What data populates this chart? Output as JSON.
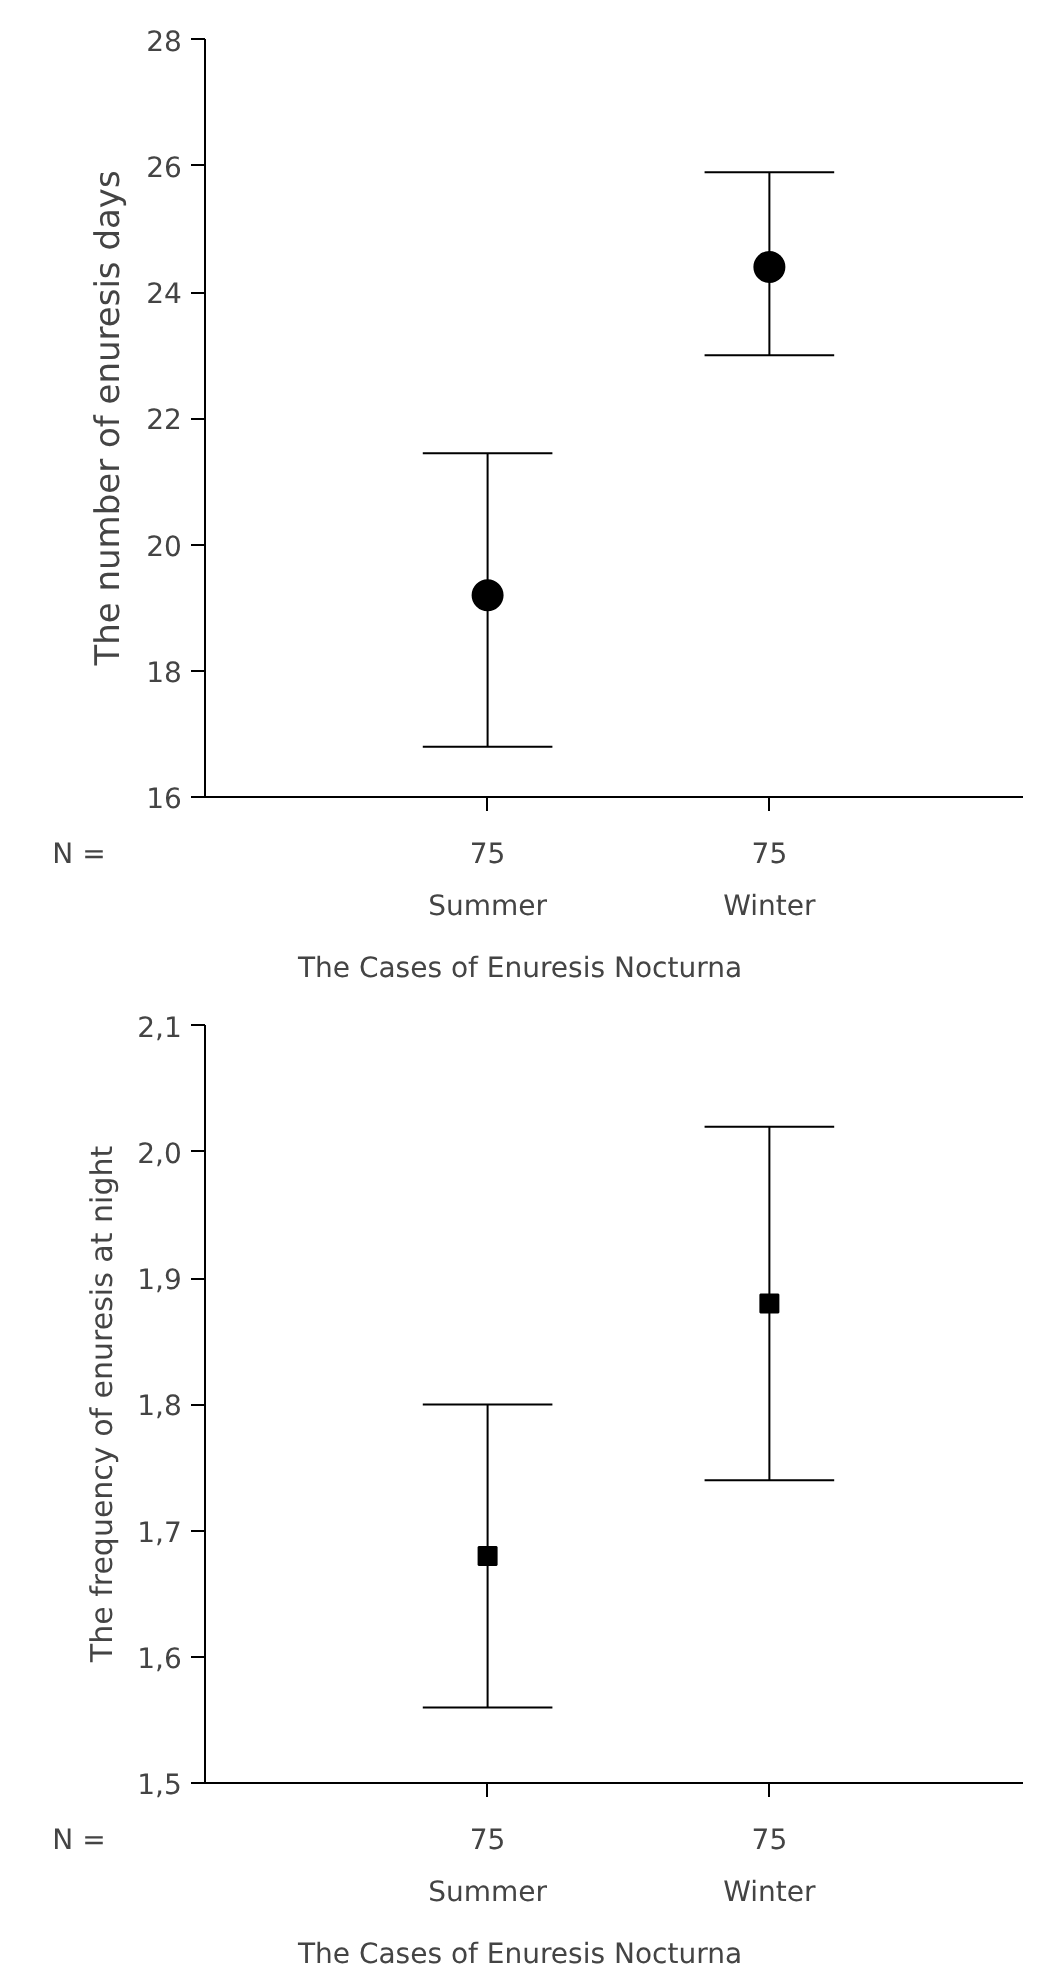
{
  "chart_data": [
    {
      "type": "scatter",
      "xlabel": "The Cases of Enuresis Nocturna",
      "ylabel": "The number of enuresis days",
      "categories": [
        "Summer",
        "Winter"
      ],
      "values": [
        19.2,
        24.4
      ],
      "errors": [
        [
          16.8,
          21.45
        ],
        [
          23.0,
          25.9
        ]
      ],
      "color": "#000000",
      "ylim": [
        16,
        28
      ],
      "yticks": [
        16,
        18,
        20,
        22,
        24,
        26,
        28
      ],
      "marker": "circle",
      "grid": false,
      "annotations": [
        "N =",
        "75",
        "75"
      ]
    },
    {
      "type": "scatter",
      "xlabel": "The Cases of Enuresis Nocturna",
      "ylabel": "The frequency of enuresis at night",
      "categories": [
        "Summer",
        "Winter"
      ],
      "values": [
        1.68,
        1.88
      ],
      "errors": [
        [
          1.56,
          1.8
        ],
        [
          1.74,
          2.02
        ]
      ],
      "color": "#000000",
      "ylim": [
        1.5,
        2.1
      ],
      "yticks": [
        {
          "value": 1.5,
          "label": "1,5"
        },
        {
          "value": 1.6,
          "label": "1,6"
        },
        {
          "value": 1.7,
          "label": "1,7"
        },
        {
          "value": 1.8,
          "label": "1,8"
        },
        {
          "value": 1.9,
          "label": "1,9"
        },
        {
          "value": 2.0,
          "label": "2,0"
        },
        {
          "value": 2.1,
          "label": "2,1"
        }
      ],
      "marker": "square",
      "grid": false,
      "annotations": [
        "N =",
        "75",
        "75"
      ]
    }
  ]
}
